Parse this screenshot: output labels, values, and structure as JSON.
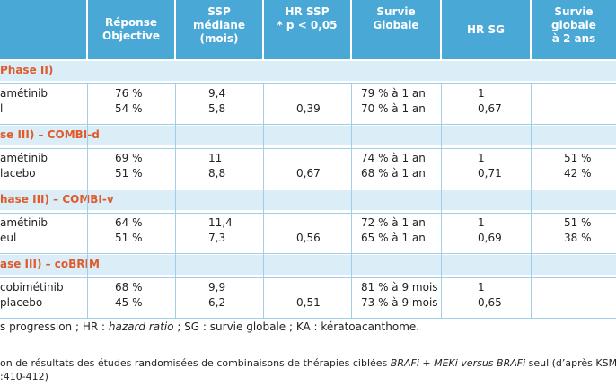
{
  "headers": [
    "",
    "Réponse\nObjective",
    "SSP\nmédiane\n(mois)",
    "HR SSP\n* p < 0,05",
    "Survie\nGlobale",
    "HR SG",
    "Survie\nglobale\nà 2 ans"
  ],
  "sections": [
    {
      "title": "Phase II)",
      "row": {
        "name": "amétinib\nl",
        "response": "76 %\n54 %",
        "ssp": "9,4\n5,8",
        "hr_ssp": "0,39",
        "sg": "79 % à 1 an\n70 % à 1 an",
        "hr_sg": "1\n0,67",
        "sg2": ""
      }
    },
    {
      "title": "se III) – COMBI-d",
      "row": {
        "name": "amétinib\nlacebo",
        "response": "69 %\n51 %",
        "ssp": "11\n8,8",
        "hr_ssp": "0,67",
        "sg": "74 % à 1 an\n68 % à 1 an",
        "hr_sg": "1\n0,71",
        "sg2": "51 %\n42 %"
      }
    },
    {
      "title": "hase III) – COMBI-v",
      "row": {
        "name": "amétinib\neul",
        "response": "64 %\n51 %",
        "ssp": "11,4\n7,3",
        "hr_ssp": "0,56",
        "sg": "72 % à 1 an\n65 % à 1 an",
        "hr_sg": "1\n0,69",
        "sg2": "51 %\n38 %"
      }
    },
    {
      "title": "ase III) – coBRIM",
      "row": {
        "name": "cobimétinib\nplacebo",
        "response": "68 %\n45 %",
        "ssp": "9,9\n6,2",
        "hr_ssp": "0,51",
        "sg": "81 % à 9 mois\n73 % à 9 mois",
        "hr_sg": "1\n0,65",
        "sg2": ""
      }
    }
  ],
  "footnote": {
    "abbrev_pre": "s progression ; HR : ",
    "abbrev_hr": "hazard ratio",
    "abbrev_post": " ; SG : survie globale ; KA : kératoacanthome.",
    "caption_pre": "on de résultats des études randomisées de combinaisons de thérapies ciblées ",
    "caption_italic": "BRAFi + MEKi versus BRAFi",
    "caption_post": " seul (d’après KSM",
    "caption_line2": ":410-412)"
  }
}
